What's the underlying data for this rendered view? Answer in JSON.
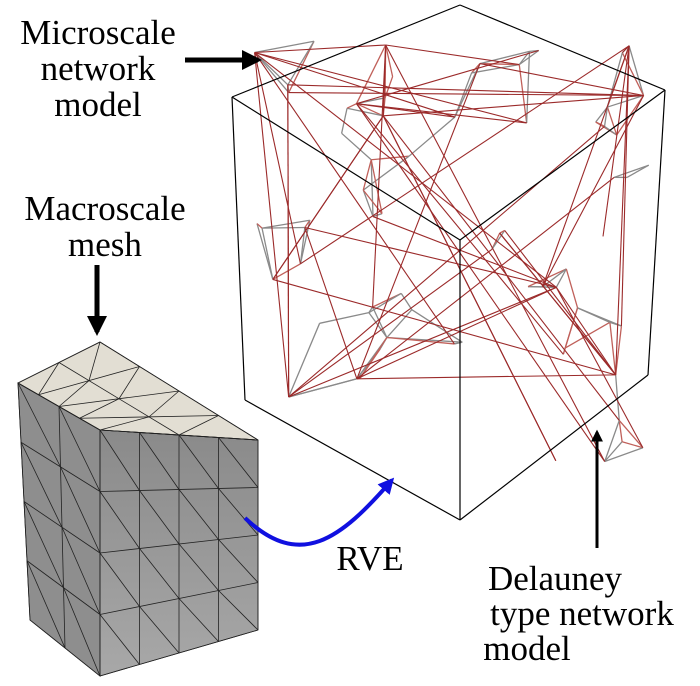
{
  "labels": {
    "microscale": [
      "Microscale",
      "network",
      "model"
    ],
    "macroscale": [
      "Macroscale",
      "mesh"
    ],
    "rve": "RVE",
    "delaunay": [
      "Delauney",
      "type network",
      "model"
    ]
  }
}
